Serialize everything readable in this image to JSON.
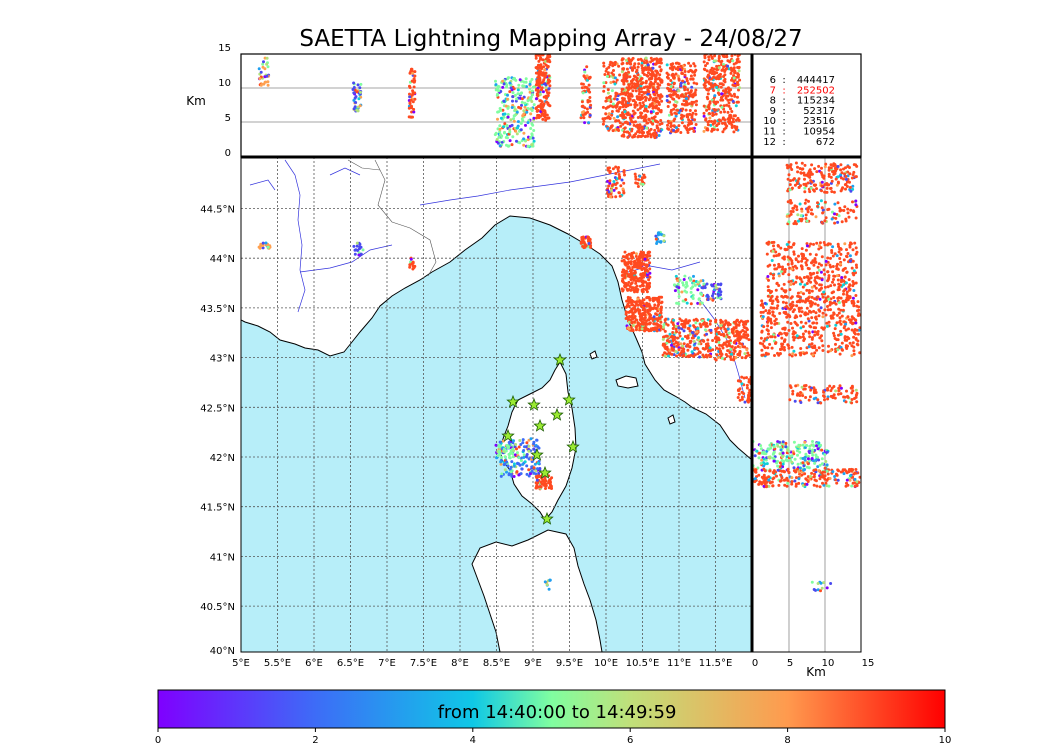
{
  "title": "SAETTA Lightning Mapping Array - 24/08/27",
  "colors": {
    "sea": "#b7eef9",
    "land": "#ffffff",
    "stroke_source": "#ff4a20",
    "river": "#3333dd",
    "station_fill": "#9bea32",
    "highlight_count": "#ff0000"
  },
  "icons": {
    "station": "star-icon"
  },
  "top_panel": {
    "ylabel": "Km",
    "yticks": [
      "15",
      "10",
      "5",
      "0"
    ]
  },
  "right_panel": {
    "xlabel": "Km",
    "xticks": [
      "0",
      "5",
      "10",
      "15"
    ]
  },
  "map": {
    "lon_ticks": [
      "5°E",
      "5.5°E",
      "6°E",
      "6.5°E",
      "7°E",
      "7.5°E",
      "8°E",
      "8.5°E",
      "9°E",
      "9.5°E",
      "10°E",
      "10.5°E",
      "11°E",
      "11.5°E"
    ],
    "lat_ticks": [
      "44.5°N",
      "44°N",
      "43.5°N",
      "43°N",
      "42.5°N",
      "42°N",
      "41.5°N",
      "41°N",
      "40.5°N",
      "40°N"
    ]
  },
  "altitude_counts": [
    {
      "alt": "6",
      "count": "444417",
      "highlight": false
    },
    {
      "alt": "7",
      "count": "252502",
      "highlight": true
    },
    {
      "alt": "8",
      "count": "115234",
      "highlight": false
    },
    {
      "alt": "9",
      "count": "52317",
      "highlight": false
    },
    {
      "alt": "10",
      "count": "23516",
      "highlight": false
    },
    {
      "alt": "11",
      "count": "10954",
      "highlight": false
    },
    {
      "alt": "12",
      "count": "672",
      "highlight": false
    }
  ],
  "colorbar": {
    "label": "from 14:40:00 to 14:49:59",
    "ticks": [
      "0",
      "2",
      "4",
      "6",
      "8",
      "10"
    ]
  }
}
